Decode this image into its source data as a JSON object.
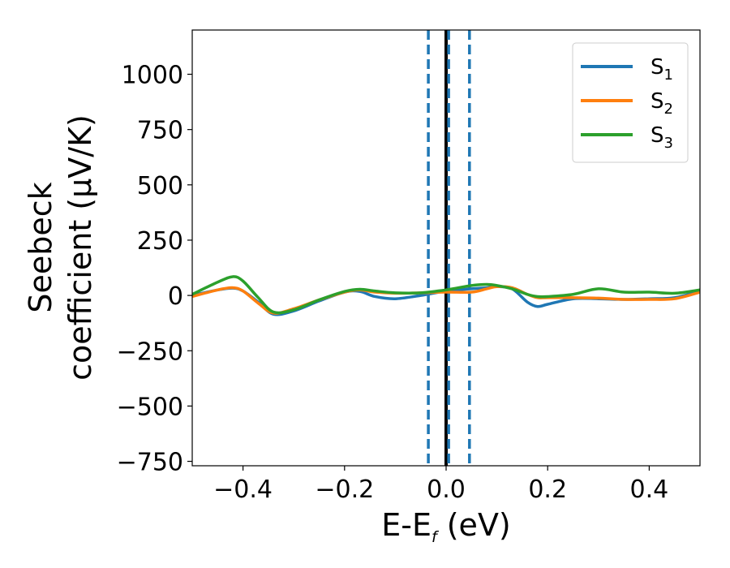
{
  "chart_data": {
    "type": "line",
    "title": "",
    "xlabel": {
      "main": "E-E",
      "sub": "f",
      "unit": " (eV)"
    },
    "ylabel": {
      "line1": "Seebeck",
      "line2": "coefficient  (μV/K)"
    },
    "xlim": [
      -0.5,
      0.5
    ],
    "ylim": [
      -770,
      1200
    ],
    "xticks": [
      -0.4,
      -0.2,
      0.0,
      0.2,
      0.4
    ],
    "xtick_labels": [
      "−0.4",
      "−0.2",
      "0.0",
      "0.2",
      "0.4"
    ],
    "yticks": [
      -750,
      -500,
      -250,
      0,
      250,
      500,
      750,
      1000
    ],
    "ytick_labels": [
      "−750",
      "−500",
      "−250",
      "0",
      "250",
      "500",
      "750",
      "1000"
    ],
    "grid": false,
    "legend_position": "top-right",
    "vlines": [
      {
        "x": 0.0,
        "style": "solid",
        "color": "#000000"
      },
      {
        "x": -0.035,
        "style": "dashed",
        "color": "#1f77b4"
      },
      {
        "x": 0.005,
        "style": "dashed",
        "color": "#1f77b4"
      },
      {
        "x": 0.046,
        "style": "dashed",
        "color": "#1f77b4"
      }
    ],
    "x": [
      -0.5,
      -0.45,
      -0.42,
      -0.4,
      -0.37,
      -0.34,
      -0.3,
      -0.25,
      -0.2,
      -0.17,
      -0.14,
      -0.1,
      -0.05,
      0.0,
      0.05,
      0.08,
      0.1,
      0.13,
      0.16,
      0.18,
      0.2,
      0.25,
      0.3,
      0.35,
      0.4,
      0.45,
      0.5
    ],
    "series": [
      {
        "name": "S",
        "sub": "1",
        "color": "#1f77b4",
        "values": [
          0,
          25,
          33,
          20,
          -30,
          -85,
          -70,
          -25,
          15,
          18,
          -5,
          -15,
          0,
          20,
          30,
          35,
          40,
          30,
          -30,
          -50,
          -40,
          -15,
          -15,
          -18,
          -15,
          -10,
          20
        ]
      },
      {
        "name": "S",
        "sub": "2",
        "color": "#ff7f0e",
        "values": [
          -5,
          25,
          35,
          20,
          -35,
          -80,
          -60,
          -20,
          15,
          25,
          15,
          10,
          12,
          15,
          15,
          30,
          40,
          35,
          5,
          -10,
          -10,
          -10,
          -12,
          -18,
          -18,
          -15,
          15
        ]
      },
      {
        "name": "S",
        "sub": "3",
        "color": "#2ca02c",
        "values": [
          5,
          60,
          85,
          65,
          -10,
          -75,
          -65,
          -20,
          18,
          28,
          20,
          12,
          12,
          25,
          45,
          50,
          45,
          30,
          5,
          -5,
          -5,
          5,
          30,
          15,
          15,
          10,
          25
        ]
      }
    ]
  }
}
